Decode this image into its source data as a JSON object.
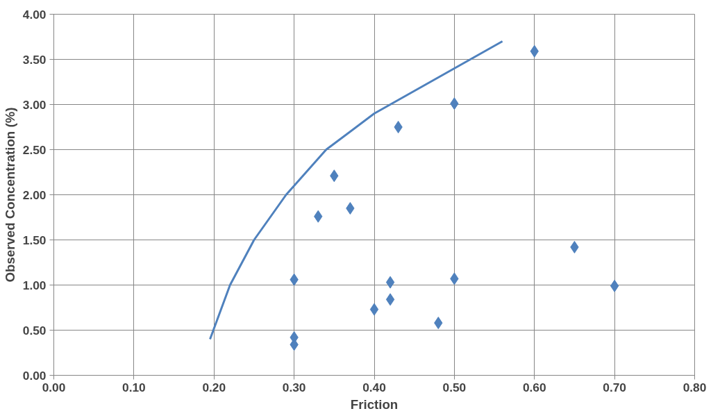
{
  "chart_data": {
    "type": "scatter",
    "xlabel": "Friction",
    "ylabel": "Observed Concentration (%)",
    "xlim": [
      0,
      0.8
    ],
    "ylim": [
      0,
      4
    ],
    "xticks": [
      {
        "value": 0,
        "label": "0.00"
      },
      {
        "value": 0.1,
        "label": "0.10"
      },
      {
        "value": 0.2,
        "label": "0.20"
      },
      {
        "value": 0.3,
        "label": "0.30"
      },
      {
        "value": 0.4,
        "label": "0.40"
      },
      {
        "value": 0.5,
        "label": "0.50"
      },
      {
        "value": 0.6,
        "label": "0.60"
      },
      {
        "value": 0.7,
        "label": "0.70"
      },
      {
        "value": 0.8,
        "label": "0.80"
      }
    ],
    "yticks": [
      {
        "value": 0,
        "label": "0.00"
      },
      {
        "value": 0.5,
        "label": "0.50"
      },
      {
        "value": 1,
        "label": "1.00"
      },
      {
        "value": 1.5,
        "label": "1.50"
      },
      {
        "value": 2,
        "label": "2.00"
      },
      {
        "value": 2.5,
        "label": "2.50"
      },
      {
        "value": 3,
        "label": "3.00"
      },
      {
        "value": 3.5,
        "label": "3.50"
      },
      {
        "value": 4,
        "label": "4.00"
      }
    ],
    "grid": true,
    "series": [
      {
        "marker": "diamond",
        "color": "#4f81bd",
        "x": [
          0.3,
          0.3,
          0.3,
          0.33,
          0.35,
          0.37,
          0.4,
          0.42,
          0.42,
          0.43,
          0.48,
          0.5,
          0.5,
          0.6,
          0.65,
          0.7
        ],
        "values": [
          1.06,
          0.42,
          0.34,
          1.76,
          2.21,
          1.85,
          0.73,
          1.03,
          0.84,
          2.75,
          0.58,
          3.01,
          1.07,
          3.59,
          1.42,
          0.99
        ]
      },
      {
        "type": "line",
        "color": "#4f81bd",
        "x": [
          0.195,
          0.22,
          0.25,
          0.29,
          0.34,
          0.4,
          0.5,
          0.56
        ],
        "values": [
          0.4,
          1.0,
          1.5,
          2.0,
          2.5,
          2.9,
          3.4,
          3.7
        ]
      }
    ]
  }
}
